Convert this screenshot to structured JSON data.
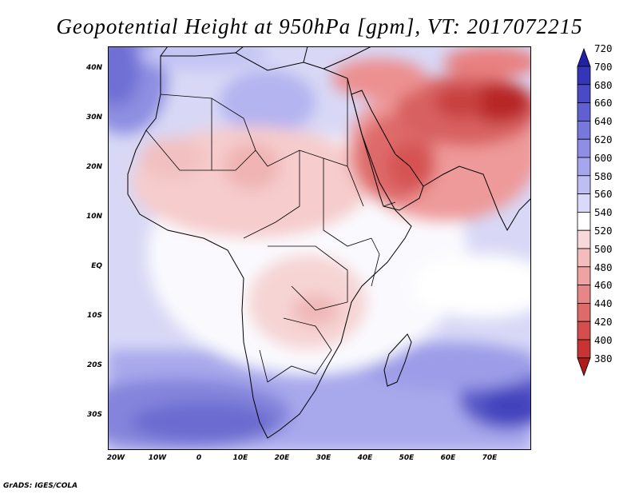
{
  "title": "Geopotential Height at 950hPa [gpm], VT: 2017072215",
  "credit": "GrADS: IGES/COLA",
  "lat_labels": [
    "40N",
    "30N",
    "20N",
    "10N",
    "EQ",
    "10S",
    "20S",
    "30S"
  ],
  "lat_values": [
    40,
    30,
    20,
    10,
    0,
    -10,
    -20,
    -30
  ],
  "lon_labels": [
    "20W",
    "10W",
    "0",
    "10E",
    "20E",
    "30E",
    "40E",
    "50E",
    "60E",
    "70E"
  ],
  "lon_values": [
    -20,
    -10,
    0,
    10,
    20,
    30,
    40,
    50,
    60,
    70
  ],
  "map_extent": {
    "lon_min": -22,
    "lon_max": 80,
    "lat_min": -37,
    "lat_max": 45
  },
  "colorbar_labels": [
    "720",
    "700",
    "680",
    "660",
    "640",
    "620",
    "600",
    "580",
    "560",
    "540",
    "520",
    "500",
    "480",
    "460",
    "440",
    "420",
    "400",
    "380"
  ],
  "colorbar_colors": [
    "#2020a8",
    "#3535b8",
    "#4a4ac6",
    "#6060d2",
    "#7878dc",
    "#8e8ee6",
    "#a6a6ee",
    "#bebef4",
    "#dadaf8",
    "#ffffff",
    "#f8d8d8",
    "#f4bcbc",
    "#eea2a2",
    "#e68686",
    "#de6a6a",
    "#d44e4e",
    "#c83434",
    "#b01c1c"
  ]
}
